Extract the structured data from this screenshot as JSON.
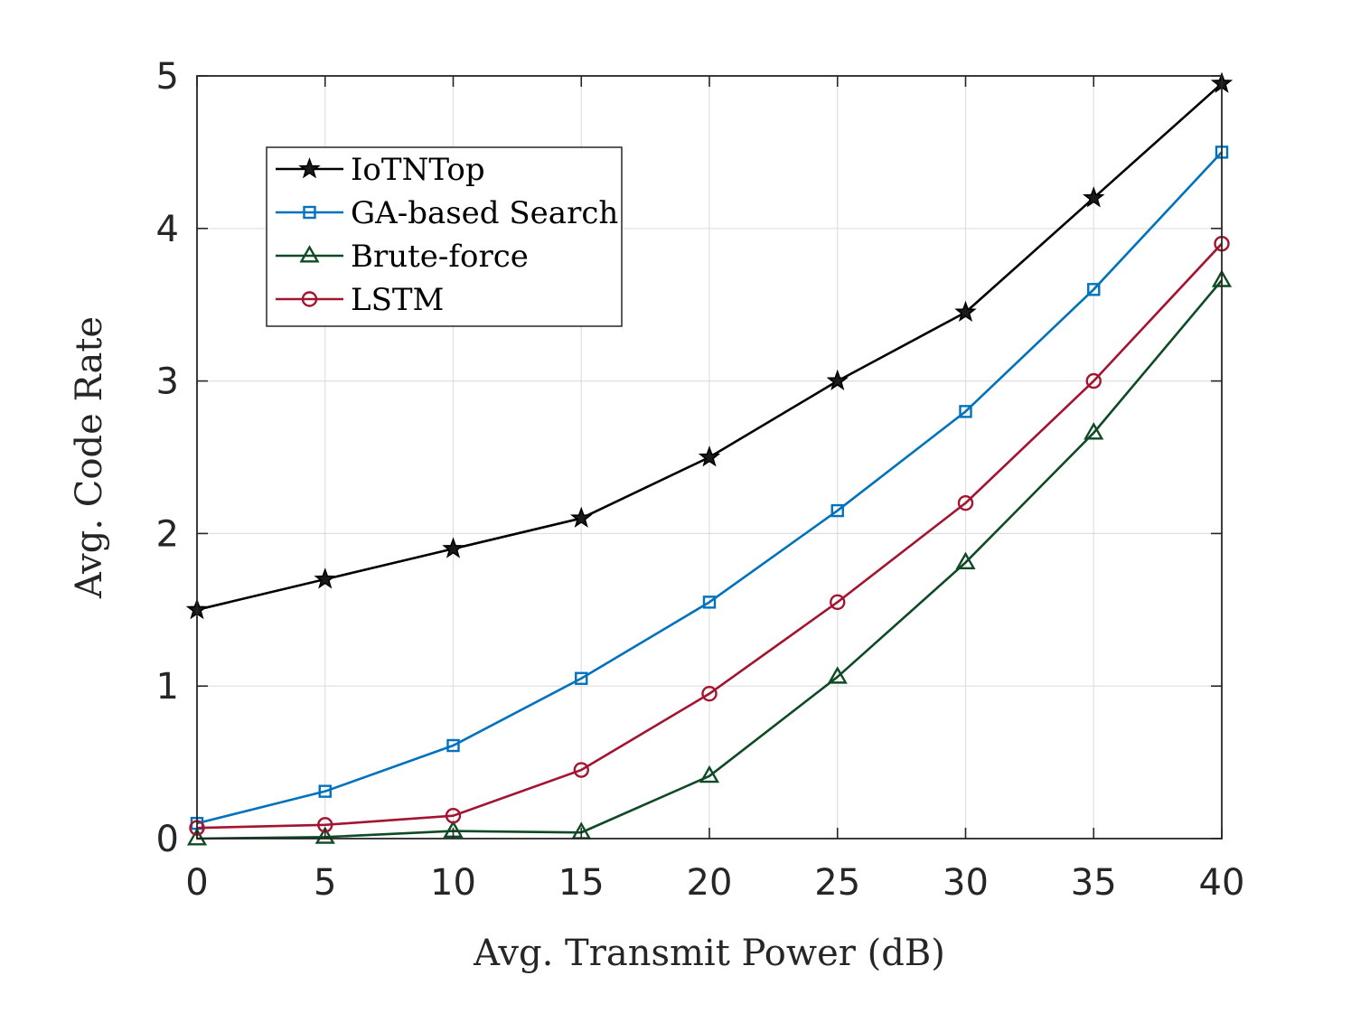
{
  "chart_data": {
    "type": "line",
    "title": "",
    "xlabel": "Avg. Transmit Power (dB)",
    "ylabel": "Avg. Code Rate",
    "x": [
      0,
      5,
      10,
      15,
      20,
      25,
      30,
      35,
      40
    ],
    "xlim": [
      0,
      40
    ],
    "ylim": [
      0,
      5
    ],
    "xticks": [
      "0",
      "5",
      "10",
      "15",
      "20",
      "25",
      "30",
      "35",
      "40"
    ],
    "yticks": [
      "0",
      "1",
      "2",
      "3",
      "4",
      "5"
    ],
    "grid": true,
    "legend_position": "top-left",
    "series": [
      {
        "name": "IoTNTop",
        "color": "#000000",
        "marker": "star",
        "values": [
          1.5,
          1.7,
          1.9,
          2.1,
          2.5,
          3.0,
          3.45,
          4.2,
          4.95
        ]
      },
      {
        "name": "GA-based Search",
        "color": "#0072BD",
        "marker": "square",
        "values": [
          0.1,
          0.31,
          0.61,
          1.05,
          1.55,
          2.15,
          2.8,
          3.6,
          4.5
        ]
      },
      {
        "name": "Brute-force",
        "color": "#0E4A24",
        "marker": "triangle",
        "values": [
          0.0,
          0.01,
          0.05,
          0.04,
          0.41,
          1.06,
          1.81,
          2.66,
          3.66
        ]
      },
      {
        "name": "LSTM",
        "color": "#A2142F",
        "marker": "circle",
        "values": [
          0.07,
          0.09,
          0.15,
          0.45,
          0.95,
          1.55,
          2.2,
          3.0,
          3.9
        ]
      }
    ]
  }
}
